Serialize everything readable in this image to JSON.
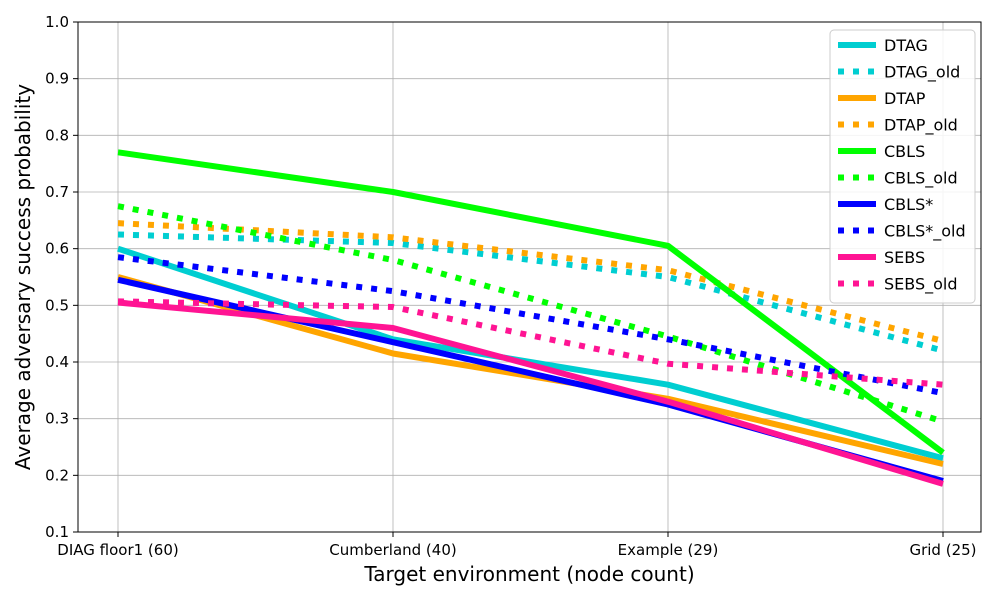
{
  "chart_data": {
    "type": "line",
    "title": "",
    "xlabel": "Target environment (node count)",
    "ylabel": "Average adversary success probability",
    "categories": [
      "DIAG floor1 (60)",
      "Cumberland (40)",
      "Example (29)",
      "Grid (25)"
    ],
    "ylim": [
      0.1,
      1.0
    ],
    "yticks": [
      "0.1",
      "0.2",
      "0.3",
      "0.4",
      "0.5",
      "0.6",
      "0.7",
      "0.8",
      "0.9",
      "1.0"
    ],
    "grid": true,
    "legend_position": "top-right",
    "series": [
      {
        "name": "DTAG",
        "style": "solid",
        "color": "#00CED1",
        "values": [
          0.6,
          0.44,
          0.36,
          0.23
        ]
      },
      {
        "name": "DTAG_old",
        "style": "dotted",
        "color": "#00CED1",
        "values": [
          0.625,
          0.61,
          0.55,
          0.42
        ]
      },
      {
        "name": "DTAP",
        "style": "solid",
        "color": "#FFA500",
        "values": [
          0.55,
          0.415,
          0.335,
          0.22
        ]
      },
      {
        "name": "DTAP_old",
        "style": "dotted",
        "color": "#FFA500",
        "values": [
          0.645,
          0.62,
          0.562,
          0.437
        ]
      },
      {
        "name": "CBLS",
        "style": "solid",
        "color": "#00FF00",
        "values": [
          0.77,
          0.7,
          0.605,
          0.24
        ]
      },
      {
        "name": "CBLS_old",
        "style": "dotted",
        "color": "#00FF00",
        "values": [
          0.675,
          0.58,
          0.445,
          0.295
        ]
      },
      {
        "name": "CBLS*",
        "style": "solid",
        "color": "#0000FF",
        "values": [
          0.545,
          0.435,
          0.325,
          0.19
        ]
      },
      {
        "name": "CBLS*_old",
        "style": "dotted",
        "color": "#0000FF",
        "values": [
          0.585,
          0.525,
          0.44,
          0.345
        ]
      },
      {
        "name": "SEBS",
        "style": "solid",
        "color": "#FF1493",
        "values": [
          0.505,
          0.46,
          0.33,
          0.185
        ]
      },
      {
        "name": "SEBS_old",
        "style": "dotted",
        "color": "#FF1493",
        "values": [
          0.507,
          0.497,
          0.397,
          0.36
        ]
      }
    ]
  }
}
